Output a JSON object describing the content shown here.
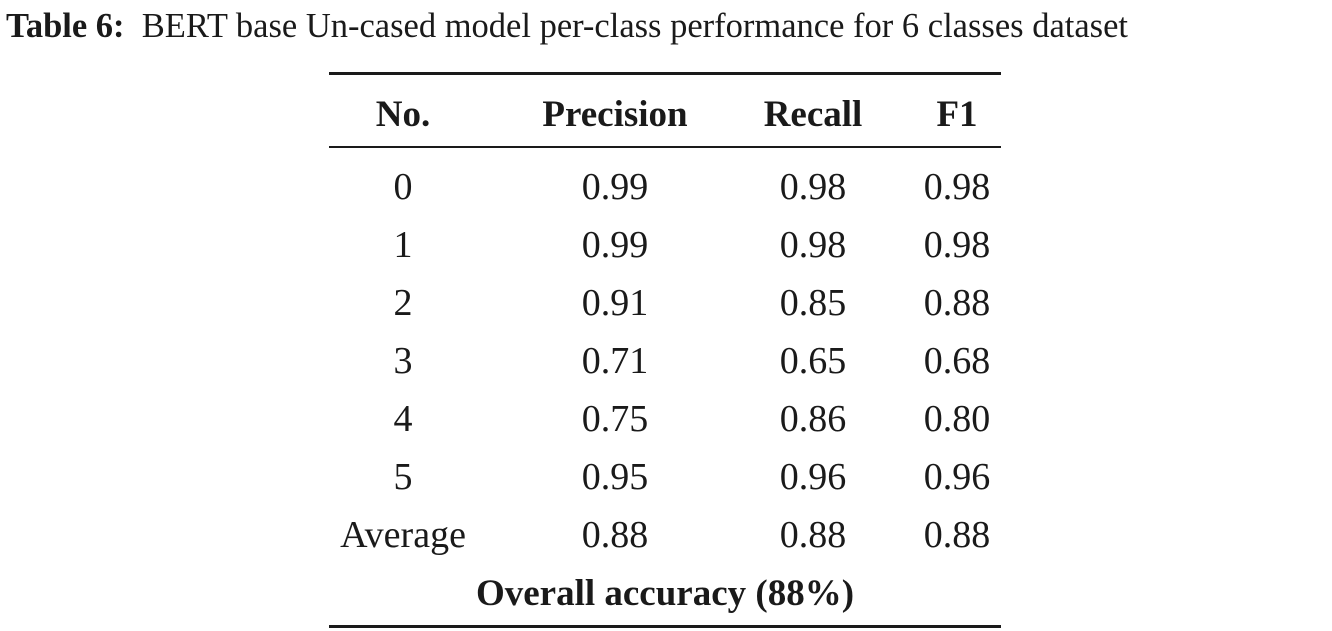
{
  "caption": {
    "label": "Table 6:",
    "text": "BERT base Un-cased model per-class performance for 6 classes dataset"
  },
  "table": {
    "headers": [
      "No.",
      "Precision",
      "Recall",
      "F1"
    ],
    "rows": [
      [
        "0",
        "0.99",
        "0.98",
        "0.98"
      ],
      [
        "1",
        "0.99",
        "0.98",
        "0.98"
      ],
      [
        "2",
        "0.91",
        "0.85",
        "0.88"
      ],
      [
        "3",
        "0.71",
        "0.65",
        "0.68"
      ],
      [
        "4",
        "0.75",
        "0.86",
        "0.80"
      ],
      [
        "5",
        "0.95",
        "0.96",
        "0.96"
      ],
      [
        "Average",
        "0.88",
        "0.88",
        "0.88"
      ]
    ],
    "footer": "Overall accuracy (88%)"
  }
}
